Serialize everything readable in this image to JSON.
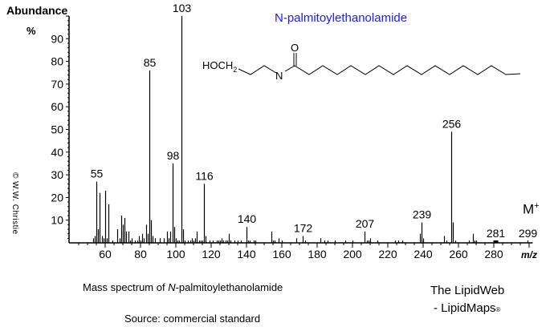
{
  "chart_data": {
    "type": "bar",
    "title": "N-palmitoylethanolamide",
    "xlabel": "m/z",
    "ylabel": "Abundance %",
    "xlim": [
      40,
      302
    ],
    "ylim": [
      0,
      100
    ],
    "x_ticks": [
      60,
      80,
      100,
      120,
      140,
      160,
      180,
      200,
      220,
      240,
      260,
      280,
      300
    ],
    "y_ticks": [
      10,
      20,
      30,
      40,
      50,
      60,
      70,
      80,
      90
    ],
    "grid": false,
    "legend": null,
    "peaks": [
      {
        "mz": 53,
        "abundance": 2
      },
      {
        "mz": 54,
        "abundance": 3
      },
      {
        "mz": 55,
        "abundance": 27,
        "label": "55"
      },
      {
        "mz": 56,
        "abundance": 6
      },
      {
        "mz": 57,
        "abundance": 22
      },
      {
        "mz": 58,
        "abundance": 3
      },
      {
        "mz": 59,
        "abundance": 2
      },
      {
        "mz": 60,
        "abundance": 23
      },
      {
        "mz": 61,
        "abundance": 2
      },
      {
        "mz": 62,
        "abundance": 17
      },
      {
        "mz": 64,
        "abundance": 1
      },
      {
        "mz": 67,
        "abundance": 6
      },
      {
        "mz": 68,
        "abundance": 2
      },
      {
        "mz": 69,
        "abundance": 12
      },
      {
        "mz": 70,
        "abundance": 8
      },
      {
        "mz": 71,
        "abundance": 11
      },
      {
        "mz": 72,
        "abundance": 5
      },
      {
        "mz": 73,
        "abundance": 5
      },
      {
        "mz": 74,
        "abundance": 1
      },
      {
        "mz": 75,
        "abundance": 2
      },
      {
        "mz": 77,
        "abundance": 1
      },
      {
        "mz": 78,
        "abundance": 1
      },
      {
        "mz": 79,
        "abundance": 3
      },
      {
        "mz": 80,
        "abundance": 1
      },
      {
        "mz": 81,
        "abundance": 4
      },
      {
        "mz": 82,
        "abundance": 2
      },
      {
        "mz": 83,
        "abundance": 8
      },
      {
        "mz": 84,
        "abundance": 4
      },
      {
        "mz": 85,
        "abundance": 76,
        "label": "85"
      },
      {
        "mz": 86,
        "abundance": 10
      },
      {
        "mz": 87,
        "abundance": 3
      },
      {
        "mz": 88,
        "abundance": 2
      },
      {
        "mz": 91,
        "abundance": 2
      },
      {
        "mz": 93,
        "abundance": 2
      },
      {
        "mz": 95,
        "abundance": 5
      },
      {
        "mz": 96,
        "abundance": 2
      },
      {
        "mz": 97,
        "abundance": 5
      },
      {
        "mz": 98,
        "abundance": 35,
        "label": "98"
      },
      {
        "mz": 99,
        "abundance": 7
      },
      {
        "mz": 100,
        "abundance": 2
      },
      {
        "mz": 101,
        "abundance": 1
      },
      {
        "mz": 102,
        "abundance": 1
      },
      {
        "mz": 103,
        "abundance": 100,
        "label": "103"
      },
      {
        "mz": 104,
        "abundance": 6
      },
      {
        "mz": 105,
        "abundance": 1
      },
      {
        "mz": 107,
        "abundance": 1
      },
      {
        "mz": 108,
        "abundance": 1
      },
      {
        "mz": 109,
        "abundance": 2
      },
      {
        "mz": 110,
        "abundance": 1
      },
      {
        "mz": 111,
        "abundance": 2
      },
      {
        "mz": 112,
        "abundance": 5
      },
      {
        "mz": 113,
        "abundance": 1
      },
      {
        "mz": 114,
        "abundance": 1
      },
      {
        "mz": 115,
        "abundance": 1
      },
      {
        "mz": 116,
        "abundance": 26,
        "label": "116"
      },
      {
        "mz": 117,
        "abundance": 3
      },
      {
        "mz": 119,
        "abundance": 1
      },
      {
        "mz": 121,
        "abundance": 1
      },
      {
        "mz": 123,
        "abundance": 1
      },
      {
        "mz": 124,
        "abundance": 1
      },
      {
        "mz": 125,
        "abundance": 1
      },
      {
        "mz": 126,
        "abundance": 2
      },
      {
        "mz": 127,
        "abundance": 1
      },
      {
        "mz": 128,
        "abundance": 1
      },
      {
        "mz": 129,
        "abundance": 1
      },
      {
        "mz": 130,
        "abundance": 4
      },
      {
        "mz": 131,
        "abundance": 1
      },
      {
        "mz": 133,
        "abundance": 1
      },
      {
        "mz": 135,
        "abundance": 1
      },
      {
        "mz": 137,
        "abundance": 1
      },
      {
        "mz": 140,
        "abundance": 7,
        "label": "140"
      },
      {
        "mz": 141,
        "abundance": 1
      },
      {
        "mz": 142,
        "abundance": 1
      },
      {
        "mz": 144,
        "abundance": 1
      },
      {
        "mz": 145,
        "abundance": 1
      },
      {
        "mz": 154,
        "abundance": 5
      },
      {
        "mz": 155,
        "abundance": 1
      },
      {
        "mz": 156,
        "abundance": 1
      },
      {
        "mz": 158,
        "abundance": 2
      },
      {
        "mz": 160,
        "abundance": 1
      },
      {
        "mz": 168,
        "abundance": 2
      },
      {
        "mz": 172,
        "abundance": 3,
        "label": "172"
      },
      {
        "mz": 173,
        "abundance": 1
      },
      {
        "mz": 182,
        "abundance": 2
      },
      {
        "mz": 184,
        "abundance": 1
      },
      {
        "mz": 186,
        "abundance": 1
      },
      {
        "mz": 190,
        "abundance": 1
      },
      {
        "mz": 196,
        "abundance": 1
      },
      {
        "mz": 200,
        "abundance": 1
      },
      {
        "mz": 207,
        "abundance": 5,
        "label": "207"
      },
      {
        "mz": 208,
        "abundance": 1
      },
      {
        "mz": 209,
        "abundance": 1
      },
      {
        "mz": 210,
        "abundance": 2
      },
      {
        "mz": 214,
        "abundance": 1
      },
      {
        "mz": 224,
        "abundance": 1
      },
      {
        "mz": 226,
        "abundance": 1
      },
      {
        "mz": 228,
        "abundance": 1
      },
      {
        "mz": 238,
        "abundance": 4
      },
      {
        "mz": 239,
        "abundance": 9,
        "label": "239"
      },
      {
        "mz": 240,
        "abundance": 2
      },
      {
        "mz": 252,
        "abundance": 3
      },
      {
        "mz": 253,
        "abundance": 1
      },
      {
        "mz": 256,
        "abundance": 49,
        "label": "256"
      },
      {
        "mz": 257,
        "abundance": 9
      },
      {
        "mz": 258,
        "abundance": 1
      },
      {
        "mz": 266,
        "abundance": 1
      },
      {
        "mz": 268,
        "abundance": 4
      },
      {
        "mz": 269,
        "abundance": 1
      },
      {
        "mz": 270,
        "abundance": 1
      },
      {
        "mz": 281,
        "abundance": 1,
        "label": "281"
      },
      {
        "mz": 299,
        "abundance": 1,
        "label": "299"
      }
    ],
    "annotations": [
      "M+"
    ]
  },
  "axis": {
    "y_title": "Abundance",
    "y_unit": "%",
    "x_title": "m/z"
  },
  "compound_name": "N-palmitoylethanolamide",
  "structure": {
    "hoch2": "HOCH",
    "sub2": "2",
    "n_atom": "N",
    "o_atom": "O"
  },
  "molecular_ion": {
    "label": "M",
    "charge": "+"
  },
  "copyright": "© W.W. Christie",
  "caption": {
    "prefix": "Mass spectrum of ",
    "italic": "N",
    "suffix": "-palmitoylethanolamide"
  },
  "source": "Source: commercial standard",
  "brand": {
    "line1": "The LipidWeb",
    "line2": "- LipidMaps",
    "reg": "®"
  },
  "colors": {
    "title": "#1a1aff",
    "ink": "#000000"
  }
}
